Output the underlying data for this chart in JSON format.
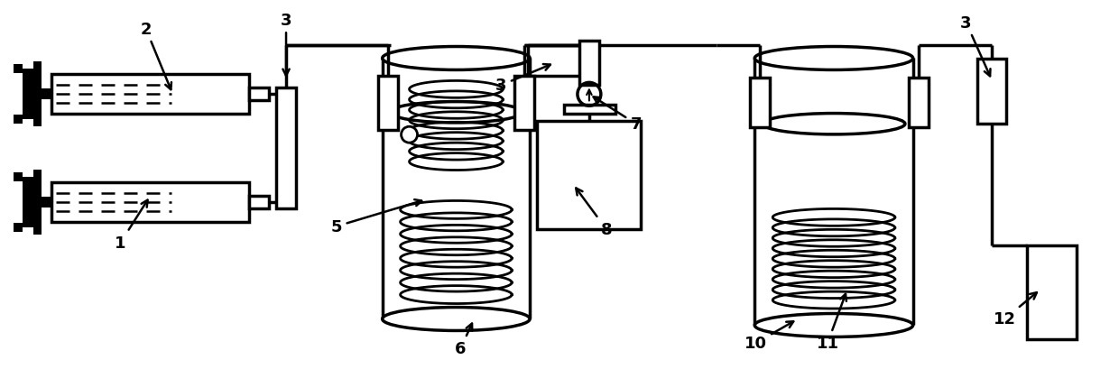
{
  "bg_color": "#ffffff",
  "line_color": "#000000",
  "line_width": 2.5,
  "fig_width": 12.4,
  "fig_height": 4.1
}
